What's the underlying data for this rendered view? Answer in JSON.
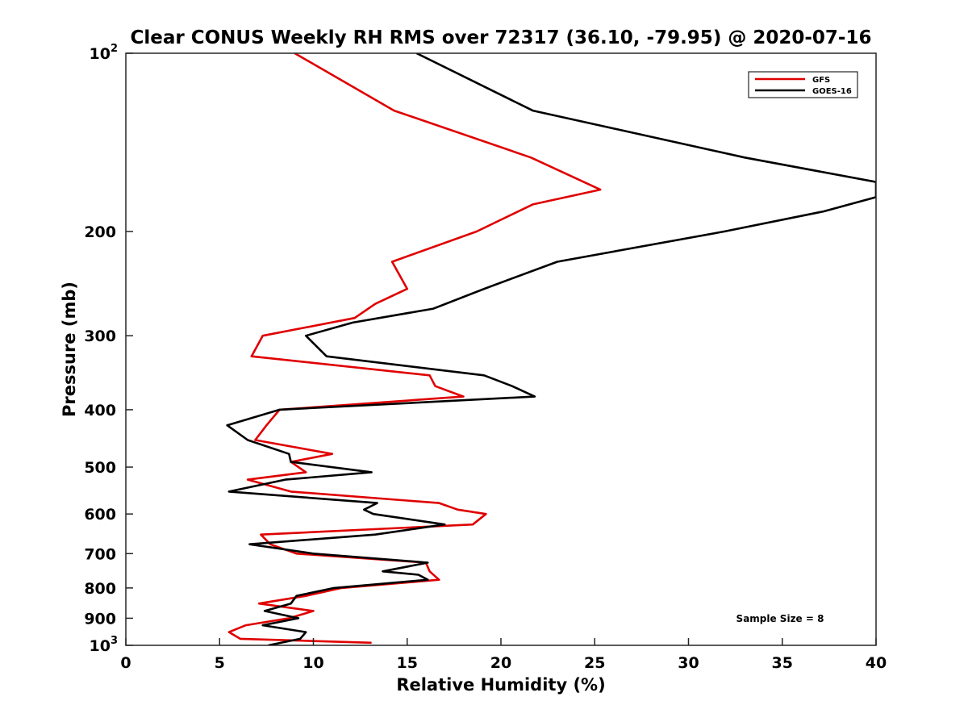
{
  "chart_data": {
    "type": "line",
    "title": "Clear CONUS Weekly RH RMS over 72317 (36.10, -79.95) @ 2020-07-16",
    "xlabel": "Relative Humidity (%)",
    "ylabel": "Pressure (mb)",
    "xlim": [
      0,
      40
    ],
    "ylim": [
      100,
      1000
    ],
    "y_scale": "log",
    "y_reversed": true,
    "grid": false,
    "legend_position": "top-right",
    "x_ticks": [
      "0",
      "5",
      "10",
      "15",
      "20",
      "25",
      "30",
      "35",
      "40"
    ],
    "y_ticks": [
      {
        "value": 100,
        "base": "10",
        "exp": "2"
      },
      {
        "value": 200,
        "label": "200"
      },
      {
        "value": 300,
        "label": "300"
      },
      {
        "value": 400,
        "label": "400"
      },
      {
        "value": 500,
        "label": "500"
      },
      {
        "value": 600,
        "label": "600"
      },
      {
        "value": 700,
        "label": "700"
      },
      {
        "value": 800,
        "label": "800"
      },
      {
        "value": 900,
        "label": "900"
      },
      {
        "value": 1000,
        "base": "10",
        "exp": "3"
      }
    ],
    "annotation": "Sample Size = 8",
    "series": [
      {
        "name": "GFS",
        "color": "#e00000",
        "points": [
          [
            9.0,
            100
          ],
          [
            14.3,
            125
          ],
          [
            21.6,
            150
          ],
          [
            25.3,
            170
          ],
          [
            21.7,
            180
          ],
          [
            18.7,
            200
          ],
          [
            14.2,
            225
          ],
          [
            15.0,
            250
          ],
          [
            13.3,
            265
          ],
          [
            12.2,
            280
          ],
          [
            7.3,
            300
          ],
          [
            6.7,
            325
          ],
          [
            16.2,
            350
          ],
          [
            16.5,
            365
          ],
          [
            18.0,
            380
          ],
          [
            8.2,
            400
          ],
          [
            7.5,
            425
          ],
          [
            6.9,
            450
          ],
          [
            11.0,
            475
          ],
          [
            8.8,
            490
          ],
          [
            9.6,
            510
          ],
          [
            6.5,
            525
          ],
          [
            8.8,
            550
          ],
          [
            16.7,
            575
          ],
          [
            17.7,
            590
          ],
          [
            19.2,
            600
          ],
          [
            18.5,
            625
          ],
          [
            7.2,
            650
          ],
          [
            7.7,
            675
          ],
          [
            9.1,
            700
          ],
          [
            16.0,
            725
          ],
          [
            16.2,
            750
          ],
          [
            16.7,
            775
          ],
          [
            11.5,
            800
          ],
          [
            9.6,
            825
          ],
          [
            7.1,
            850
          ],
          [
            10.0,
            875
          ],
          [
            8.7,
            900
          ],
          [
            6.4,
            925
          ],
          [
            5.5,
            950
          ],
          [
            6.1,
            975
          ],
          [
            13.1,
            990
          ]
        ]
      },
      {
        "name": "GOES-16",
        "color": "#000000",
        "points": [
          [
            15.5,
            100
          ],
          [
            21.7,
            125
          ],
          [
            33.0,
            150
          ],
          [
            40.0,
            165
          ],
          [
            40.0,
            175
          ],
          [
            37.2,
            185
          ],
          [
            31.9,
            200
          ],
          [
            23.0,
            225
          ],
          [
            19.1,
            250
          ],
          [
            16.4,
            270
          ],
          [
            12.1,
            285
          ],
          [
            9.6,
            300
          ],
          [
            10.7,
            325
          ],
          [
            19.1,
            350
          ],
          [
            20.6,
            365
          ],
          [
            21.8,
            380
          ],
          [
            8.2,
            400
          ],
          [
            5.4,
            425
          ],
          [
            6.5,
            450
          ],
          [
            8.7,
            475
          ],
          [
            8.8,
            490
          ],
          [
            13.1,
            510
          ],
          [
            8.5,
            525
          ],
          [
            5.5,
            550
          ],
          [
            13.4,
            575
          ],
          [
            12.7,
            590
          ],
          [
            13.2,
            600
          ],
          [
            17.0,
            625
          ],
          [
            13.3,
            650
          ],
          [
            6.6,
            675
          ],
          [
            10.0,
            700
          ],
          [
            16.1,
            725
          ],
          [
            13.7,
            750
          ],
          [
            15.6,
            760
          ],
          [
            16.1,
            775
          ],
          [
            11.1,
            800
          ],
          [
            9.1,
            825
          ],
          [
            8.8,
            850
          ],
          [
            7.4,
            875
          ],
          [
            9.2,
            900
          ],
          [
            7.3,
            925
          ],
          [
            9.6,
            950
          ],
          [
            9.3,
            975
          ],
          [
            7.6,
            1000
          ]
        ]
      }
    ]
  }
}
